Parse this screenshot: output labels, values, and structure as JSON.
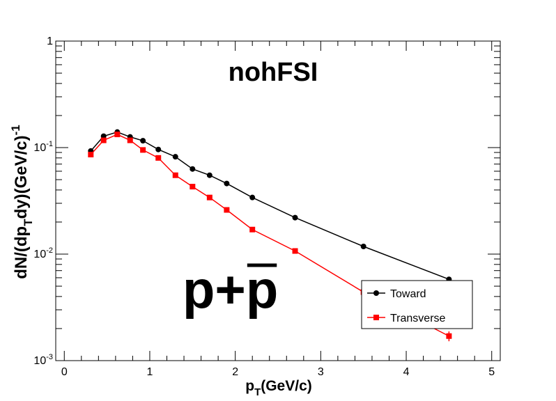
{
  "chart_data": {
    "type": "line",
    "title": "nohFSI",
    "annotation": {
      "base": "p+",
      "overline": "p"
    },
    "xlabel": {
      "base": "p",
      "sub": "T",
      "tail": "(GeV/c)"
    },
    "ylabel": {
      "p1": "dN/(dp",
      "sub": "T",
      "p2": "dy)(GeV/c)",
      "sup": "-1"
    },
    "xlim": [
      -0.1,
      5.1
    ],
    "ylim": [
      0.001,
      1
    ],
    "yscale": "log",
    "x_ticks": [
      "0",
      "1",
      "2",
      "3",
      "4",
      "5"
    ],
    "y_ticks": [
      {
        "base": "10",
        "exp": "-3"
      },
      {
        "base": "10",
        "exp": "-2"
      },
      {
        "base": "10",
        "exp": "-1"
      },
      {
        "base": "1",
        "exp": ""
      }
    ],
    "legend_position": "bottom-right",
    "series": [
      {
        "name": "Toward",
        "color": "#000000",
        "marker": "circle",
        "x": [
          0.31,
          0.46,
          0.62,
          0.77,
          0.92,
          1.1,
          1.3,
          1.5,
          1.7,
          1.9,
          2.2,
          2.7,
          3.5,
          4.5
        ],
        "y": [
          0.093,
          0.128,
          0.14,
          0.126,
          0.116,
          0.096,
          0.082,
          0.063,
          0.055,
          0.046,
          0.034,
          0.022,
          0.0118,
          0.0058
        ],
        "err": [
          0.003,
          0.003,
          0.003,
          0.003,
          0.003,
          0.002,
          0.002,
          0.002,
          0.0015,
          0.0012,
          0.001,
          0.0008,
          0.0004,
          0.0002
        ]
      },
      {
        "name": "Transverse",
        "color": "#ff0000",
        "marker": "square",
        "x": [
          0.31,
          0.46,
          0.62,
          0.77,
          0.92,
          1.1,
          1.3,
          1.5,
          1.7,
          1.9,
          2.2,
          2.7,
          3.5,
          4.5
        ],
        "y": [
          0.086,
          0.117,
          0.133,
          0.117,
          0.095,
          0.08,
          0.055,
          0.043,
          0.034,
          0.026,
          0.017,
          0.0107,
          0.0044,
          0.0017
        ],
        "err": [
          0.003,
          0.003,
          0.003,
          0.003,
          0.003,
          0.002,
          0.002,
          0.0015,
          0.001,
          0.001,
          0.0006,
          0.0004,
          0.0002,
          0.00018
        ]
      }
    ]
  }
}
